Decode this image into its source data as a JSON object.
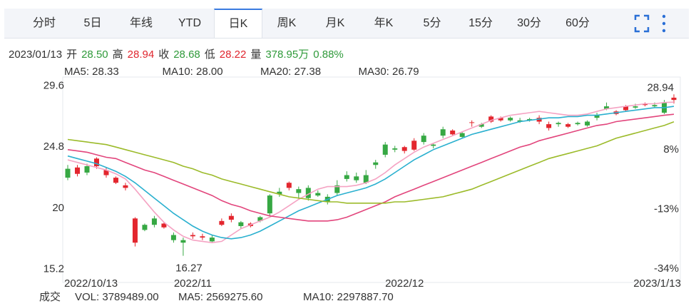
{
  "tabs": [
    "分时",
    "5日",
    "年线",
    "YTD",
    "日K",
    "周K",
    "月K",
    "年K",
    "5分",
    "15分",
    "30分",
    "60分"
  ],
  "active_tab": 4,
  "quote": {
    "date": "2023/01/13",
    "items": [
      {
        "label": "开",
        "value": "28.50",
        "color": "#2f9a3a"
      },
      {
        "label": "高",
        "value": "28.94",
        "color": "#e0262e"
      },
      {
        "label": "收",
        "value": "28.68",
        "color": "#2f9a3a"
      },
      {
        "label": "低",
        "value": "28.22",
        "color": "#e0262e"
      },
      {
        "label": "量",
        "value": "378.95万",
        "color": "#2f9a3a"
      },
      {
        "value": "0.88%",
        "color": "#2f9a3a"
      }
    ]
  },
  "volume": {
    "label": "成交",
    "items": [
      {
        "text": "VOL: 3789489.00",
        "color": "#777777"
      },
      {
        "text": "MA5: 2569275.60",
        "color": "#f08cb4"
      },
      {
        "text": "MA10: 2297887.70",
        "color": "#2ab0cf"
      }
    ]
  },
  "chart_data": {
    "type": "candlestick",
    "categories": [
      "2022/10/13",
      null,
      null,
      null,
      null,
      null,
      null,
      null,
      null,
      null,
      null,
      null,
      null,
      "2022/11",
      null,
      null,
      null,
      null,
      null,
      null,
      null,
      null,
      null,
      null,
      null,
      null,
      null,
      null,
      null,
      null,
      null,
      null,
      null,
      null,
      null,
      "2022/12",
      null,
      null,
      null,
      null,
      null,
      null,
      null,
      null,
      null,
      null,
      null,
      null,
      null,
      null,
      null,
      null,
      null,
      null,
      null,
      null,
      null,
      null,
      null,
      null,
      null,
      null,
      null,
      "2023/1/13"
    ],
    "open": [
      23.1,
      22.7,
      23.3,
      23.3,
      22.6,
      22.0,
      21.6,
      17.3,
      18.7,
      19.2,
      18.5,
      17.9,
      17.5,
      17.8,
      17.7,
      17.7,
      18.7,
      19.1,
      18.9,
      18.6,
      19.3,
      21.0,
      21.3,
      21.6,
      21.5,
      21.6,
      21.2,
      20.9,
      21.8,
      22.6,
      22.5,
      22.6,
      23.6,
      25.0,
      24.7,
      24.5,
      24.6,
      25.7,
      25.0,
      26.2,
      25.8,
      25.9,
      26.7,
      26.6,
      26.8,
      26.9,
      27.1,
      26.9,
      27.0,
      26.8,
      26.3,
      26.7,
      26.4,
      26.7,
      26.8,
      27.3,
      28.0,
      27.4,
      27.7,
      28.0,
      28.1,
      28.1,
      28.3,
      28.5
    ],
    "high": [
      23.4,
      23.4,
      23.5,
      24.0,
      23.2,
      22.5,
      22.0,
      19.3,
      18.8,
      19.4,
      18.9,
      18.1,
      17.7,
      18.1,
      18.0,
      17.9,
      19.2,
      19.6,
      19.0,
      18.9,
      19.4,
      21.1,
      21.6,
      22.1,
      21.7,
      21.8,
      21.4,
      21.1,
      22.2,
      22.9,
      22.8,
      23.0,
      23.8,
      25.2,
      24.9,
      24.9,
      25.5,
      25.9,
      25.1,
      26.4,
      26.2,
      26.0,
      26.9,
      26.7,
      27.3,
      27.2,
      27.2,
      27.1,
      27.1,
      27.3,
      26.8,
      26.8,
      26.7,
      26.8,
      26.9,
      27.5,
      28.3,
      27.7,
      28.1,
      28.2,
      28.3,
      28.3,
      28.5,
      28.94
    ],
    "low": [
      22.2,
      22.5,
      22.6,
      23.1,
      22.4,
      21.9,
      21.4,
      17.0,
      18.2,
      18.5,
      18.4,
      17.3,
      16.27,
      17.6,
      17.5,
      17.3,
      18.6,
      18.9,
      18.4,
      18.5,
      18.9,
      19.4,
      20.9,
      21.4,
      20.7,
      20.6,
      20.9,
      20.3,
      21.0,
      22.1,
      22.0,
      21.9,
      23.1,
      24.0,
      24.4,
      24.3,
      24.5,
      25.0,
      24.7,
      25.5,
      25.7,
      25.5,
      26.4,
      26.3,
      26.7,
      26.8,
      26.8,
      26.7,
      26.8,
      26.6,
      26.1,
      26.4,
      26.3,
      26.5,
      26.4,
      26.9,
      27.7,
      27.3,
      27.6,
      27.8,
      28.0,
      27.9,
      27.4,
      28.22
    ],
    "close": [
      22.4,
      23.2,
      22.8,
      23.9,
      23.0,
      22.4,
      21.8,
      19.2,
      18.3,
      18.7,
      18.8,
      17.5,
      17.3,
      17.9,
      17.8,
      17.4,
      19.0,
      19.4,
      18.6,
      18.8,
      19.0,
      19.6,
      21.1,
      22.0,
      21.2,
      20.8,
      21.0,
      20.5,
      21.2,
      22.3,
      22.2,
      22.0,
      23.4,
      24.2,
      24.6,
      24.8,
      25.3,
      25.2,
      24.9,
      25.7,
      26.1,
      25.6,
      26.75,
      26.4,
      27.2,
      27.1,
      26.9,
      26.8,
      26.9,
      27.1,
      26.6,
      26.6,
      26.6,
      26.6,
      26.5,
      27.1,
      27.8,
      27.6,
      28.0,
      27.9,
      28.2,
      28.0,
      27.5,
      28.68
    ],
    "up_color": "#e3262e",
    "down_color": "#36a843",
    "max_label": "28.94",
    "min_label": "16.27",
    "series": [
      {
        "name": "MA5: 28.33",
        "color": "#f5a3c3",
        "values": [
          23.8,
          23.6,
          23.4,
          23.2,
          23.0,
          22.7,
          22.3,
          21.5,
          20.6,
          19.7,
          18.9,
          18.3,
          17.8,
          17.5,
          17.4,
          17.3,
          17.4,
          17.9,
          18.4,
          18.7,
          19.0,
          19.3,
          19.7,
          20.2,
          20.7,
          21.1,
          21.5,
          21.7,
          21.7,
          21.7,
          21.8,
          22.0,
          22.3,
          22.8,
          23.4,
          23.9,
          24.4,
          24.8,
          25.1,
          25.4,
          25.7,
          26.0,
          26.3,
          26.6,
          26.9,
          27.1,
          27.3,
          27.4,
          27.5,
          27.6,
          27.5,
          27.4,
          27.3,
          27.3,
          27.4,
          27.6,
          27.8,
          27.9,
          28.0,
          28.1,
          28.2,
          28.2,
          28.3,
          28.33
        ]
      },
      {
        "name": "MA10: 28.00",
        "color": "#2ab0cf",
        "values": [
          24.1,
          23.9,
          23.7,
          23.5,
          23.2,
          22.9,
          22.5,
          22.0,
          21.4,
          20.8,
          20.2,
          19.6,
          19.1,
          18.6,
          18.2,
          17.9,
          17.7,
          17.6,
          17.7,
          17.9,
          18.2,
          18.6,
          19.0,
          19.4,
          19.8,
          20.1,
          20.4,
          20.7,
          21.0,
          21.2,
          21.4,
          21.6,
          21.9,
          22.3,
          22.8,
          23.3,
          23.8,
          24.2,
          24.6,
          24.9,
          25.2,
          25.5,
          25.8,
          26.0,
          26.2,
          26.4,
          26.6,
          26.8,
          26.9,
          27.0,
          27.1,
          27.1,
          27.2,
          27.2,
          27.3,
          27.3,
          27.4,
          27.5,
          27.6,
          27.7,
          27.8,
          27.9,
          27.9,
          28.0
        ]
      },
      {
        "name": "MA20: 27.38",
        "color": "#e2457c",
        "values": [
          24.6,
          24.5,
          24.4,
          24.2,
          24.0,
          23.9,
          23.6,
          23.3,
          23.0,
          22.8,
          22.5,
          22.2,
          21.9,
          21.6,
          21.3,
          21.0,
          20.6,
          20.3,
          20.1,
          19.8,
          19.6,
          19.4,
          19.3,
          19.2,
          19.1,
          19.0,
          19.0,
          19.0,
          19.1,
          19.3,
          19.6,
          19.9,
          20.2,
          20.5,
          20.9,
          21.2,
          21.5,
          21.8,
          22.1,
          22.4,
          22.7,
          23.0,
          23.3,
          23.6,
          23.9,
          24.2,
          24.5,
          24.8,
          25.0,
          25.3,
          25.5,
          25.7,
          25.9,
          26.1,
          26.3,
          26.5,
          26.6,
          26.8,
          26.9,
          27.0,
          27.1,
          27.2,
          27.3,
          27.38
        ]
      },
      {
        "name": "MA30: 26.79",
        "color": "#9cbb2a",
        "values": [
          25.4,
          25.3,
          25.2,
          25.1,
          25.0,
          24.8,
          24.6,
          24.4,
          24.2,
          24.0,
          23.8,
          23.6,
          23.3,
          23.1,
          22.8,
          22.6,
          22.3,
          22.1,
          21.9,
          21.7,
          21.5,
          21.3,
          21.1,
          20.9,
          20.8,
          20.7,
          20.6,
          20.5,
          20.5,
          20.4,
          20.4,
          20.4,
          20.4,
          20.4,
          20.5,
          20.5,
          20.6,
          20.7,
          20.8,
          20.9,
          21.1,
          21.3,
          21.5,
          21.8,
          22.1,
          22.4,
          22.7,
          23.0,
          23.3,
          23.6,
          23.9,
          24.1,
          24.3,
          24.5,
          24.7,
          24.9,
          25.2,
          25.5,
          25.7,
          25.9,
          26.1,
          26.3,
          26.5,
          26.79
        ]
      }
    ],
    "ylim": [
      14.4,
      30.3
    ],
    "yticks": [
      29.6,
      24.8,
      20,
      15.2
    ],
    "y2lim": [
      -37.8,
      33.6
    ],
    "y2ticks": [
      {
        "value": 8,
        "label": "8%"
      },
      {
        "value": -13,
        "label": "-13%"
      },
      {
        "value": -34,
        "label": "-34%"
      }
    ]
  }
}
